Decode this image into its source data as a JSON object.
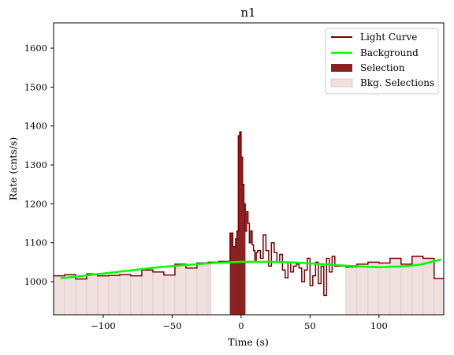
{
  "chart_data": {
    "type": "line",
    "title": "n1",
    "xlabel": "Time (s)",
    "ylabel": "Rate (cnts/s)",
    "xlim": [
      -136,
      147
    ],
    "ylim": [
      915,
      1665
    ],
    "xticks": [
      -100,
      -50,
      0,
      50,
      100
    ],
    "yticks": [
      1000,
      1100,
      1200,
      1300,
      1400,
      1500,
      1600
    ],
    "legend": {
      "placement": "top-right",
      "entries": [
        "Light Curve",
        "Background",
        "Selection",
        "Bkg. Selections"
      ]
    },
    "colors": {
      "light_curve": "#7a0000",
      "background": "#00ff00",
      "selection": "#8b2323",
      "bkg_selection": "#f0e0e0",
      "bkg_selection_edge": "#e2c8c8"
    },
    "light_curve": {
      "edges": [
        -136,
        -128,
        -120,
        -112,
        -104,
        -96,
        -88,
        -80,
        -72,
        -64,
        -56,
        -48,
        -40,
        -32,
        -24,
        -16,
        -8,
        -6,
        -4,
        -3,
        -2,
        -1,
        0,
        1,
        2,
        3,
        4,
        5,
        6,
        7,
        8,
        9,
        10,
        11,
        12,
        14,
        16,
        18,
        20,
        22,
        24,
        26,
        28,
        30,
        32,
        34,
        36,
        38,
        40,
        42,
        44,
        46,
        48,
        50,
        52,
        54,
        56,
        58,
        60,
        62,
        64,
        66,
        68,
        70,
        76,
        84,
        92,
        100,
        108,
        116,
        124,
        132,
        140,
        148
      ],
      "values": [
        1015,
        1018,
        1007,
        1020,
        1015,
        1016,
        1018,
        1015,
        1030,
        1025,
        1017,
        1045,
        1035,
        1048,
        1050,
        1052,
        1125,
        1090,
        1110,
        1130,
        1375,
        1385,
        1320,
        1250,
        1200,
        1130,
        1180,
        1150,
        1100,
        1130,
        1095,
        1080,
        1050,
        1075,
        1080,
        1060,
        1120,
        1080,
        1040,
        1100,
        1075,
        1050,
        1070,
        1030,
        1010,
        1050,
        1025,
        1040,
        1045,
        1035,
        1000,
        1030,
        1060,
        990,
        1015,
        1050,
        995,
        1040,
        965,
        1060,
        1025,
        1065,
        1040,
        1040,
        1038,
        1045,
        1050,
        1048,
        1060,
        1045,
        1065,
        1060,
        1008
      ]
    },
    "background_curve": {
      "x": [
        -131,
        -120,
        -100,
        -80,
        -60,
        -40,
        -20,
        0,
        20,
        40,
        60,
        80,
        100,
        120,
        130,
        145
      ],
      "y": [
        1009,
        1013,
        1021,
        1029,
        1037,
        1043,
        1048,
        1051,
        1051,
        1049,
        1045,
        1040,
        1037,
        1040,
        1044,
        1057
      ]
    },
    "selection_interval": [
      -8,
      3
    ],
    "bkg_selection_intervals": [
      [
        -136,
        -22
      ],
      [
        76,
        147
      ]
    ]
  }
}
